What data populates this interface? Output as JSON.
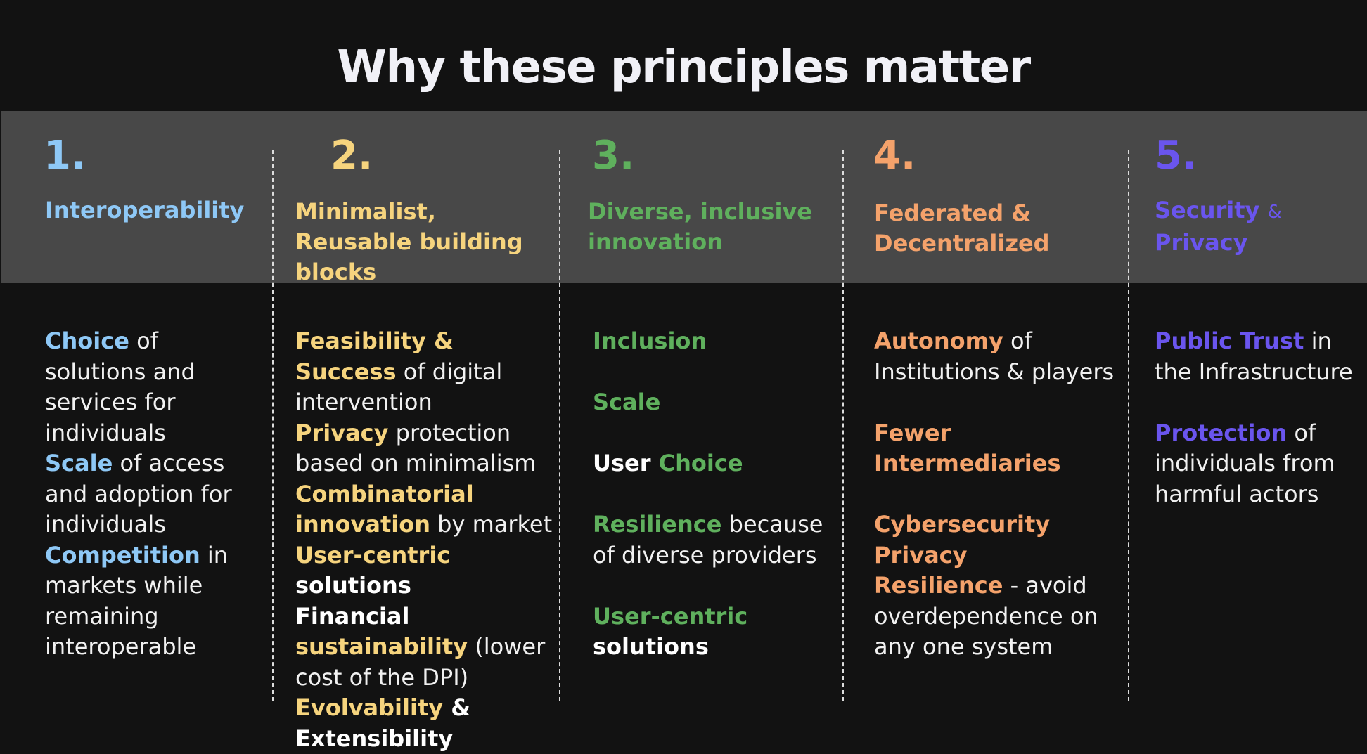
{
  "title": "Why these principles matter",
  "colors": {
    "background": "#121212",
    "header_band": "#484848",
    "title_text": "#f1f1f7",
    "body_text": "#f1f1f1",
    "col1_accent": "#8ec8f6",
    "col2_accent": "#f6d47e",
    "col3_accent": "#5fb05d",
    "col4_accent": "#f4a26b",
    "col5_accent": "#6a55ee"
  },
  "columns": [
    {
      "number": "1.",
      "title": "Interoperability",
      "items": [
        {
          "highlight": "Choice",
          "text": " of solutions and services for individuals"
        },
        {
          "highlight": "Scale",
          "text": " of access and adoption for individuals"
        },
        {
          "highlight": "Competition",
          "text": " in markets while remaining interoperable"
        }
      ]
    },
    {
      "number": "2.",
      "title": "Minimalist, Reusable building blocks",
      "items": [
        {
          "highlight": "Feasibility & Success",
          "text": " of digital intervention"
        },
        {
          "highlight": "Privacy",
          "text": " protection based on minimalism"
        },
        {
          "highlight": "Combinatorial innovation",
          "text": " by market"
        },
        {
          "highlight": "User-centric",
          "bold_white": " solutions"
        },
        {
          "bold_white": "Financial ",
          "highlight": "sustainability",
          "text": " (lower cost of the DPI)"
        },
        {
          "highlight": "Evolvability",
          "bold_white": " & Extensibility"
        }
      ]
    },
    {
      "number": "3.",
      "title": "Diverse, inclusive innovation",
      "items": [
        {
          "highlight": "Inclusion"
        },
        {
          "highlight": "Scale"
        },
        {
          "bold_white": "User ",
          "highlight": "Choice"
        },
        {
          "highlight": "Resilience",
          "text": " because of diverse providers"
        },
        {
          "highlight": "User-centric",
          "bold_white": " solutions"
        }
      ]
    },
    {
      "number": "4.",
      "title": "Federated & Decentralized",
      "items": [
        {
          "highlight": "Autonomy",
          "text": " of Institutions & players"
        },
        {
          "highlight": "Fewer Intermediaries"
        },
        {
          "highlight": "Cybersecurity"
        },
        {
          "highlight": "Privacy"
        },
        {
          "highlight": "Resilience",
          "text": " - avoid overdependence on any one system"
        }
      ]
    },
    {
      "number": "5.",
      "title_main": "Security",
      "title_amp": "&",
      "title_end": "Privacy",
      "items": [
        {
          "highlight": "Public Trust",
          "text": " in the Infrastructure"
        },
        {
          "highlight": "Protection",
          "text": " of individuals from harmful actors"
        }
      ]
    }
  ]
}
